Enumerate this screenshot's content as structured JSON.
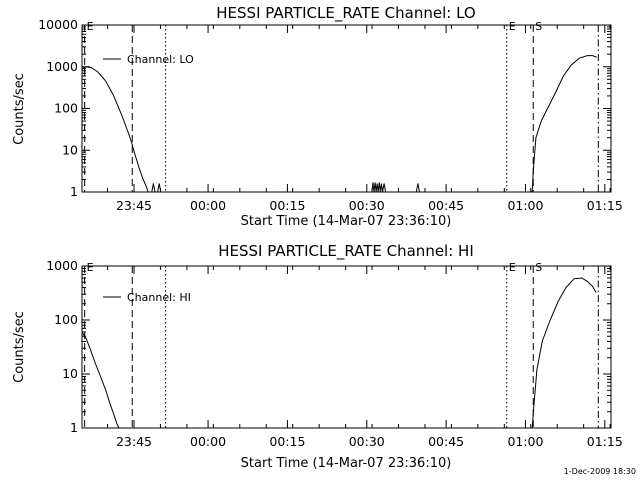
{
  "footer": {
    "timestamp": "1-Dec-2009 18:30"
  },
  "chart_data": [
    {
      "type": "line",
      "title": "HESSI PARTICLE_RATE Channel: LO",
      "xlabel": "Start Time (14-Mar-07 23:36:10)",
      "ylabel": "Counts/sec",
      "yscale": "log",
      "xlim_minutes": [
        0,
        100
      ],
      "ylim": [
        1,
        10000
      ],
      "x_ticks": [
        {
          "t": 9.83,
          "label": "23:45"
        },
        {
          "t": 23.83,
          "label": "00:00"
        },
        {
          "t": 38.83,
          "label": "00:15"
        },
        {
          "t": 53.83,
          "label": "00:30"
        },
        {
          "t": 68.83,
          "label": "00:45"
        },
        {
          "t": 83.83,
          "label": "01:00"
        },
        {
          "t": 98.83,
          "label": "01:15"
        }
      ],
      "y_ticks": [
        {
          "v": 1,
          "label": "1"
        },
        {
          "v": 10,
          "label": "10"
        },
        {
          "v": 100,
          "label": "100"
        },
        {
          "v": 1000,
          "label": "1000"
        },
        {
          "v": 10000,
          "label": "10000"
        }
      ],
      "legend": {
        "entries": [
          "Channel: LO"
        ],
        "placement": "top-left"
      },
      "vlines": [
        {
          "t": 0.5,
          "style": "dashed",
          "label": "E"
        },
        {
          "t": 9.5,
          "style": "dashed",
          "label": ""
        },
        {
          "t": 15.8,
          "style": "dotted",
          "label": ""
        },
        {
          "t": 80.3,
          "style": "dotted",
          "label": "E"
        },
        {
          "t": 85.3,
          "style": "dashed",
          "label": "S"
        },
        {
          "t": 97.6,
          "style": "dashdot",
          "label": ""
        }
      ],
      "series": [
        {
          "name": "Channel: LO",
          "segments": [
            {
              "x": [
                0,
                0.8,
                1.8,
                3,
                4.5,
                6,
                7.5,
                8.5,
                9.2,
                10,
                10.8,
                11.5,
                12.2,
                12.5
              ],
              "y": [
                900,
                1000,
                950,
                750,
                450,
                200,
                70,
                32,
                18,
                8,
                3.8,
                2.1,
                1.3,
                1
              ]
            },
            {
              "x": [
                13.2,
                13.5,
                13.8
              ],
              "y": [
                1,
                1.6,
                1
              ]
            },
            {
              "x": [
                14.3,
                14.6,
                14.9
              ],
              "y": [
                1,
                1.6,
                1
              ]
            },
            {
              "x": [
                54.8,
                55,
                55.2,
                55.4,
                55.6,
                55.8,
                56,
                56.2,
                56.4,
                56.6,
                56.8,
                57.1,
                57.4
              ],
              "y": [
                1,
                1.7,
                1,
                1.7,
                1,
                1.6,
                1,
                1.7,
                1,
                1.6,
                1,
                1.6,
                1
              ]
            },
            {
              "x": [
                63.2,
                63.5,
                63.8
              ],
              "y": [
                1,
                1.6,
                1
              ]
            },
            {
              "x": [
                85.1,
                85.3,
                85.8,
                86.8,
                88,
                89.5,
                91,
                92.5,
                94,
                95.5,
                96.5,
                97.3
              ],
              "y": [
                1,
                3,
                20,
                50,
                100,
                240,
                600,
                1100,
                1600,
                1850,
                1850,
                1700
              ]
            }
          ]
        }
      ]
    },
    {
      "type": "line",
      "title": "HESSI PARTICLE_RATE Channel: HI",
      "xlabel": "Start Time (14-Mar-07 23:36:10)",
      "ylabel": "Counts/sec",
      "yscale": "log",
      "xlim_minutes": [
        0,
        100
      ],
      "ylim": [
        1,
        1000
      ],
      "x_ticks": [
        {
          "t": 9.83,
          "label": "23:45"
        },
        {
          "t": 23.83,
          "label": "00:00"
        },
        {
          "t": 38.83,
          "label": "00:15"
        },
        {
          "t": 53.83,
          "label": "00:30"
        },
        {
          "t": 68.83,
          "label": "00:45"
        },
        {
          "t": 83.83,
          "label": "01:00"
        },
        {
          "t": 98.83,
          "label": "01:15"
        }
      ],
      "y_ticks": [
        {
          "v": 1,
          "label": "1"
        },
        {
          "v": 10,
          "label": "10"
        },
        {
          "v": 100,
          "label": "100"
        },
        {
          "v": 1000,
          "label": "1000"
        }
      ],
      "legend": {
        "entries": [
          "Channel: HI"
        ],
        "placement": "top-left"
      },
      "vlines": [
        {
          "t": 0.5,
          "style": "dashed",
          "label": "E"
        },
        {
          "t": 9.5,
          "style": "dashed",
          "label": ""
        },
        {
          "t": 15.8,
          "style": "dotted",
          "label": ""
        },
        {
          "t": 80.3,
          "style": "dotted",
          "label": "E"
        },
        {
          "t": 85.3,
          "style": "dashed",
          "label": "S"
        },
        {
          "t": 97.6,
          "style": "dashdot",
          "label": ""
        }
      ],
      "series": [
        {
          "name": "Channel: HI",
          "segments": [
            {
              "x": [
                0,
                0.8,
                1.5,
                2.5,
                3.5,
                4.5,
                5.2,
                6,
                6.6,
                7
              ],
              "y": [
                60,
                45,
                30,
                16,
                9,
                5,
                3,
                1.8,
                1.2,
                1
              ]
            },
            {
              "x": [
                85.1,
                85.4,
                86,
                87,
                88.5,
                90,
                91.5,
                93,
                94.5,
                95.5,
                96.5,
                97.2
              ],
              "y": [
                1,
                2.5,
                12,
                40,
                100,
                220,
                400,
                580,
                600,
                520,
                420,
                320
              ]
            }
          ]
        }
      ]
    }
  ]
}
